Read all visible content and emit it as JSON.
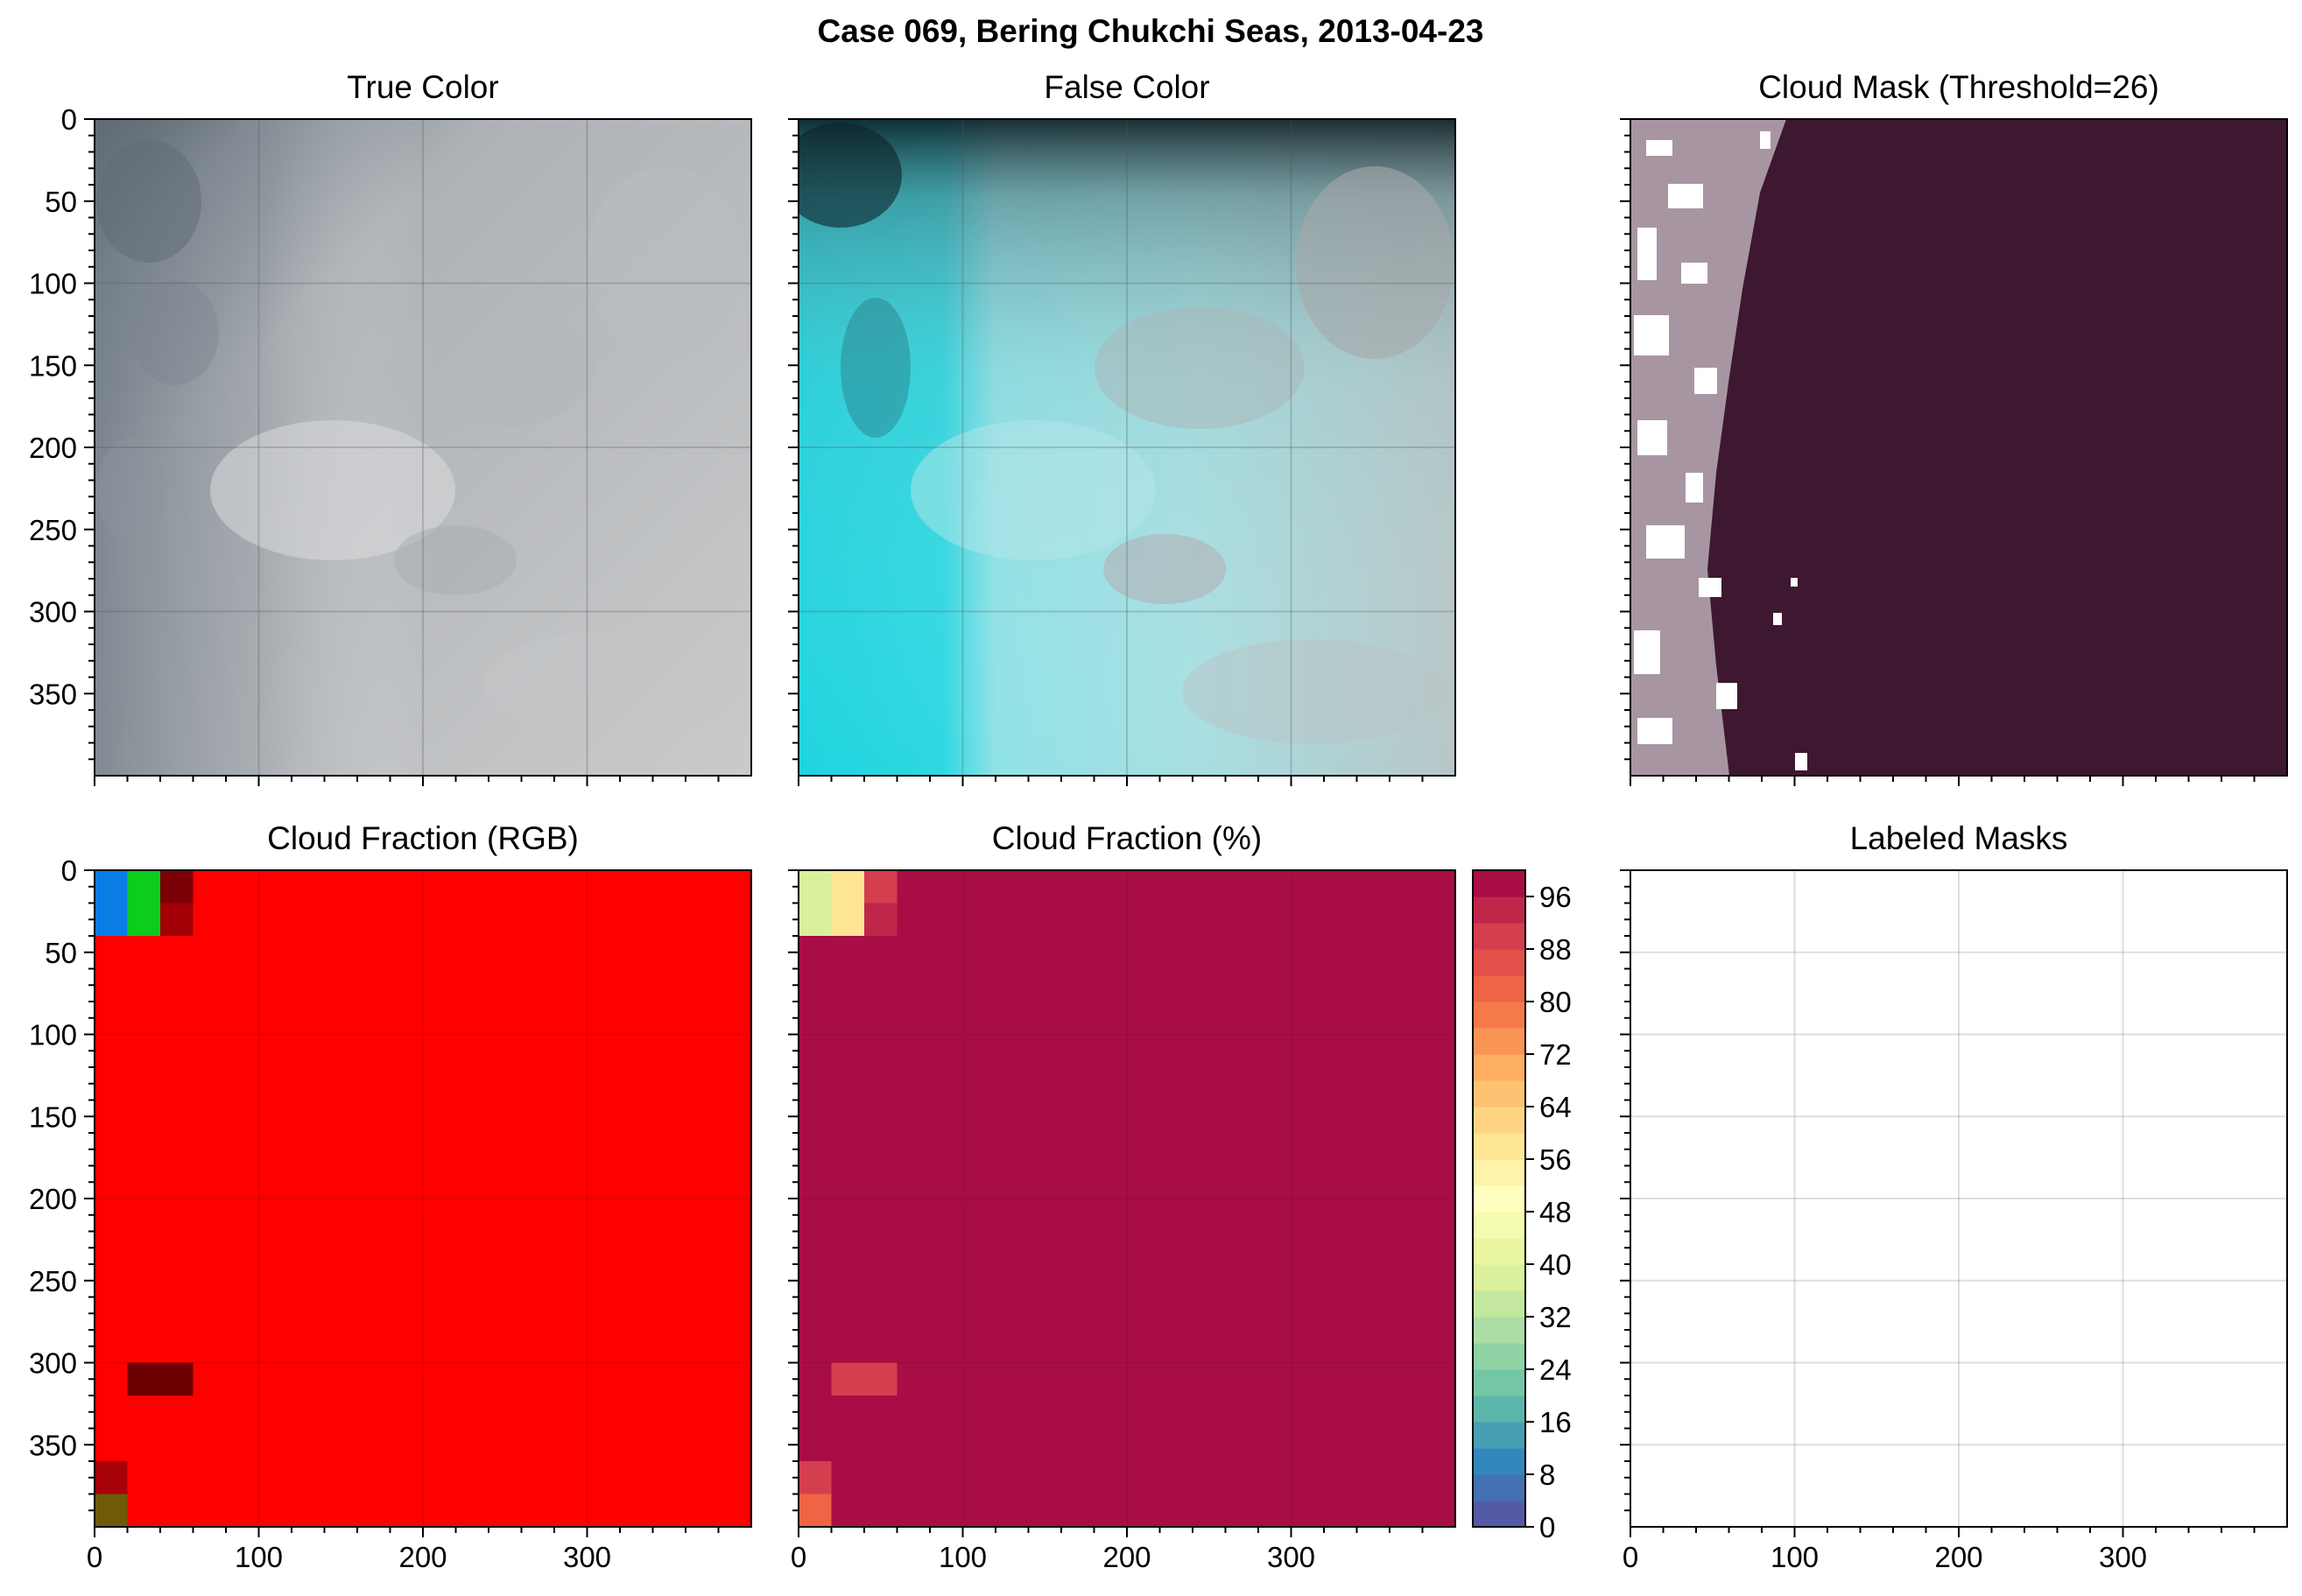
{
  "figure": {
    "suptitle": "Case 069, Bering Chukchi Seas, 2013-04-23"
  },
  "panels": {
    "true_color": {
      "title": "True Color"
    },
    "false_color": {
      "title": "False Color"
    },
    "cloud_mask": {
      "title": "Cloud Mask (Threshold=26)"
    },
    "cf_rgb": {
      "title": "Cloud Fraction (RGB)"
    },
    "cf_pct": {
      "title": "Cloud Fraction (%)"
    },
    "labeled": {
      "title": "Labeled Masks"
    }
  },
  "colors": {
    "mask_dark": "#3d1830",
    "mask_white": "#ffffff",
    "rgb_red": "#ff0000",
    "cf_high": "#9b0040"
  },
  "chart_data": [
    {
      "type": "heatmap",
      "name": "True Color",
      "title": "True Color",
      "xlim": [
        0,
        400
      ],
      "ylim": [
        400,
        0
      ],
      "yticks": [
        0,
        50,
        100,
        150,
        200,
        250,
        300,
        350
      ],
      "xticks": [
        0,
        100,
        200,
        300
      ],
      "xticklabels_shown": false,
      "grid": true
    },
    {
      "type": "heatmap",
      "name": "False Color",
      "title": "False Color",
      "xlim": [
        0,
        400
      ],
      "ylim": [
        400,
        0
      ],
      "xticks": [
        0,
        100,
        200,
        300
      ],
      "xticklabels_shown": false,
      "yticklabels_shown": false,
      "grid": true
    },
    {
      "type": "heatmap",
      "name": "Cloud Mask (Threshold=26)",
      "title": "Cloud Mask (Threshold=26)",
      "xlim": [
        0,
        400
      ],
      "ylim": [
        400,
        0
      ],
      "xticklabels_shown": false,
      "yticklabels_shown": false,
      "values": [
        "mask",
        "clear"
      ]
    },
    {
      "type": "heatmap",
      "name": "Cloud Fraction (RGB)",
      "title": "Cloud Fraction (RGB)",
      "xlim": [
        0,
        400
      ],
      "ylim": [
        400,
        0
      ],
      "xticks": [
        0,
        100,
        200,
        300
      ],
      "yticks": [
        0,
        50,
        100,
        150,
        200,
        250,
        300,
        350
      ],
      "block_size": 20,
      "background": "#ff0000",
      "cells": [
        {
          "x0": 0,
          "y0": 0,
          "x1": 20,
          "y1": 40,
          "color": "#0a7ce6"
        },
        {
          "x0": 20,
          "y0": 0,
          "x1": 40,
          "y1": 40,
          "color": "#0ccc1c"
        },
        {
          "x0": 40,
          "y0": 0,
          "x1": 60,
          "y1": 20,
          "color": "#7a0006"
        },
        {
          "x0": 40,
          "y0": 20,
          "x1": 60,
          "y1": 40,
          "color": "#a00006"
        },
        {
          "x0": 20,
          "y0": 300,
          "x1": 60,
          "y1": 320,
          "color": "#6e0000"
        },
        {
          "x0": 0,
          "y0": 360,
          "x1": 20,
          "y1": 380,
          "color": "#a60008"
        },
        {
          "x0": 0,
          "y0": 380,
          "x1": 20,
          "y1": 400,
          "color": "#6e5a08"
        }
      ]
    },
    {
      "type": "heatmap",
      "name": "Cloud Fraction (%)",
      "title": "Cloud Fraction (%)",
      "xlim": [
        0,
        400
      ],
      "ylim": [
        400,
        0
      ],
      "xticks": [
        0,
        100,
        200,
        300
      ],
      "yticklabels_shown": false,
      "block_size": 20,
      "background_value": 100,
      "cells": [
        {
          "x0": 0,
          "y0": 0,
          "x1": 20,
          "y1": 40,
          "value": 38
        },
        {
          "x0": 20,
          "y0": 0,
          "x1": 40,
          "y1": 40,
          "value": 56
        },
        {
          "x0": 40,
          "y0": 0,
          "x1": 60,
          "y1": 20,
          "value": 88
        },
        {
          "x0": 40,
          "y0": 20,
          "x1": 60,
          "y1": 40,
          "value": 92
        },
        {
          "x0": 20,
          "y0": 300,
          "x1": 60,
          "y1": 320,
          "value": 88
        },
        {
          "x0": 0,
          "y0": 360,
          "x1": 20,
          "y1": 380,
          "value": 90
        },
        {
          "x0": 0,
          "y0": 380,
          "x1": 20,
          "y1": 400,
          "value": 82
        }
      ],
      "colorbar": {
        "min": 0,
        "max": 100,
        "levels": 25,
        "ticks": [
          0,
          8,
          16,
          24,
          32,
          40,
          48,
          56,
          64,
          72,
          80,
          88,
          96
        ],
        "colormap": "Spectral_r"
      }
    },
    {
      "type": "heatmap",
      "name": "Labeled Masks",
      "title": "Labeled Masks",
      "xlim": [
        0,
        400
      ],
      "ylim": [
        400,
        0
      ],
      "xticks": [
        0,
        100,
        200,
        300
      ],
      "yticklabels_shown": false,
      "grid": true,
      "values": []
    }
  ]
}
